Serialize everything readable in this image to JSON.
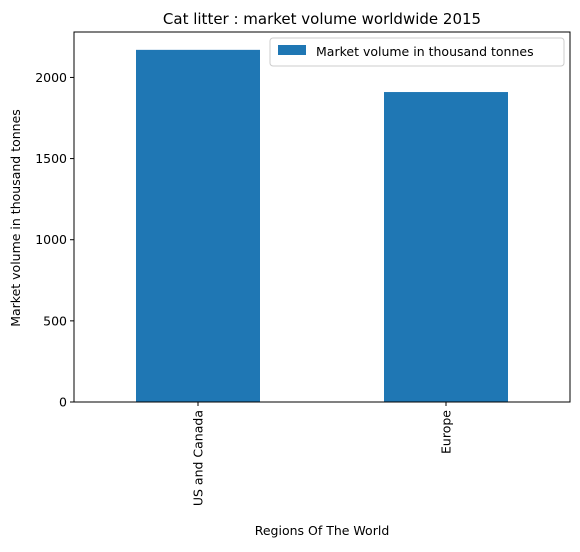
{
  "chart_data": {
    "type": "bar",
    "title": "Cat litter : market volume worldwide 2015",
    "xlabel": "Regions Of The World",
    "ylabel": "Market volume in thousand tonnes",
    "categories": [
      "US and Canada",
      "Europe"
    ],
    "series": [
      {
        "name": "Market volume in thousand tonnes",
        "values": [
          2170,
          1910
        ],
        "color": "#1f77b4"
      }
    ],
    "ylim": [
      0,
      2280
    ],
    "yticks": [
      0,
      500,
      1000,
      1500,
      2000
    ],
    "grid": false,
    "legend_position": "top-right"
  }
}
